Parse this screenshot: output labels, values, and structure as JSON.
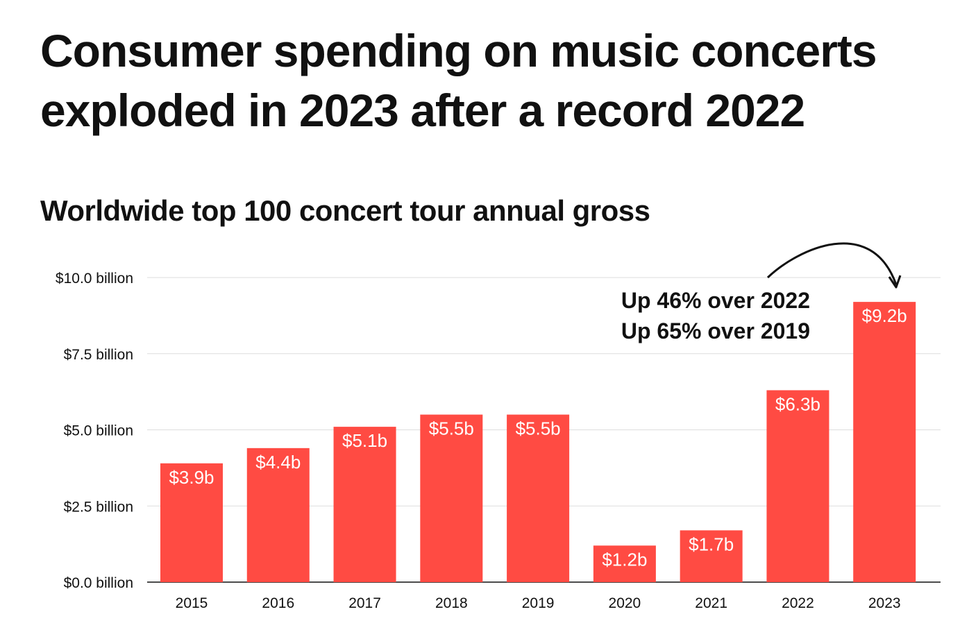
{
  "title_line1": "Consumer spending on music concerts",
  "title_line2": "exploded in 2023 after a record 2022",
  "chart_data": {
    "type": "bar",
    "title": "Worldwide top 100 concert tour annual gross",
    "categories": [
      "2015",
      "2016",
      "2017",
      "2018",
      "2019",
      "2020",
      "2021",
      "2022",
      "2023"
    ],
    "values": [
      3.9,
      4.4,
      5.1,
      5.5,
      5.5,
      1.2,
      1.7,
      6.3,
      9.2
    ],
    "value_labels": [
      "$3.9b",
      "$4.4b",
      "$5.1b",
      "$5.5b",
      "$5.5b",
      "$1.2b",
      "$1.7b",
      "$6.3b",
      "$9.2b"
    ],
    "yticks": [
      0,
      2.5,
      5,
      7.5,
      10
    ],
    "ytick_labels": [
      "$0.0 billion",
      "$2.5 billion",
      "$5.0 billion",
      "$7.5 billion",
      "$10.0 billion"
    ],
    "ylim": [
      0,
      10
    ],
    "xlabel": "",
    "ylabel": "",
    "grid": true,
    "bar_color": "#ff4b43",
    "grid_color": "#dddddd",
    "axis_color": "#111111",
    "annotation_lines": [
      "Up 46% over 2022",
      "Up 65% over 2019"
    ]
  }
}
